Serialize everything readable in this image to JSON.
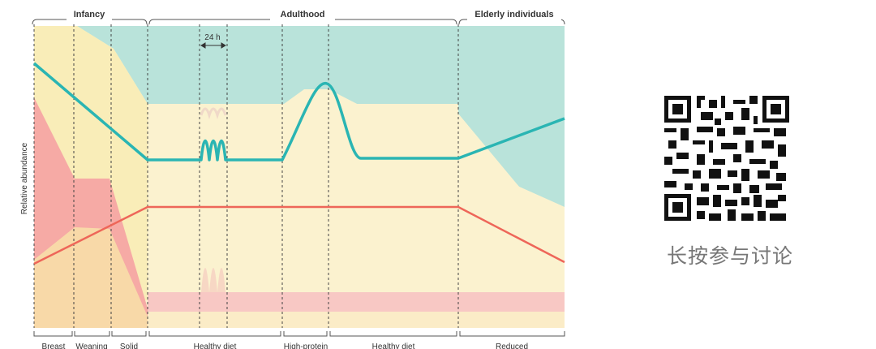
{
  "diagram": {
    "phases": [
      "Infancy",
      "Adulthood",
      "Elderly individuals"
    ],
    "y_axis_label": "Relative abundance",
    "period_label": "24 h",
    "stages": [
      "Breast",
      "Weaning",
      "Solid",
      "Healthy diet",
      "High-protein",
      "Healthy diet",
      "Reduced"
    ],
    "colors": {
      "teal_band": "#b9e3da",
      "cream_band": "#fbf2cf",
      "yellow_band": "#f9edb8",
      "pink_band": "#f8c8c4",
      "salmon_band": "#f6aaa5",
      "teal_line": "#2ab5b3",
      "red_line": "#ee6659"
    }
  },
  "qr": {
    "caption": "长按参与讨论"
  }
}
